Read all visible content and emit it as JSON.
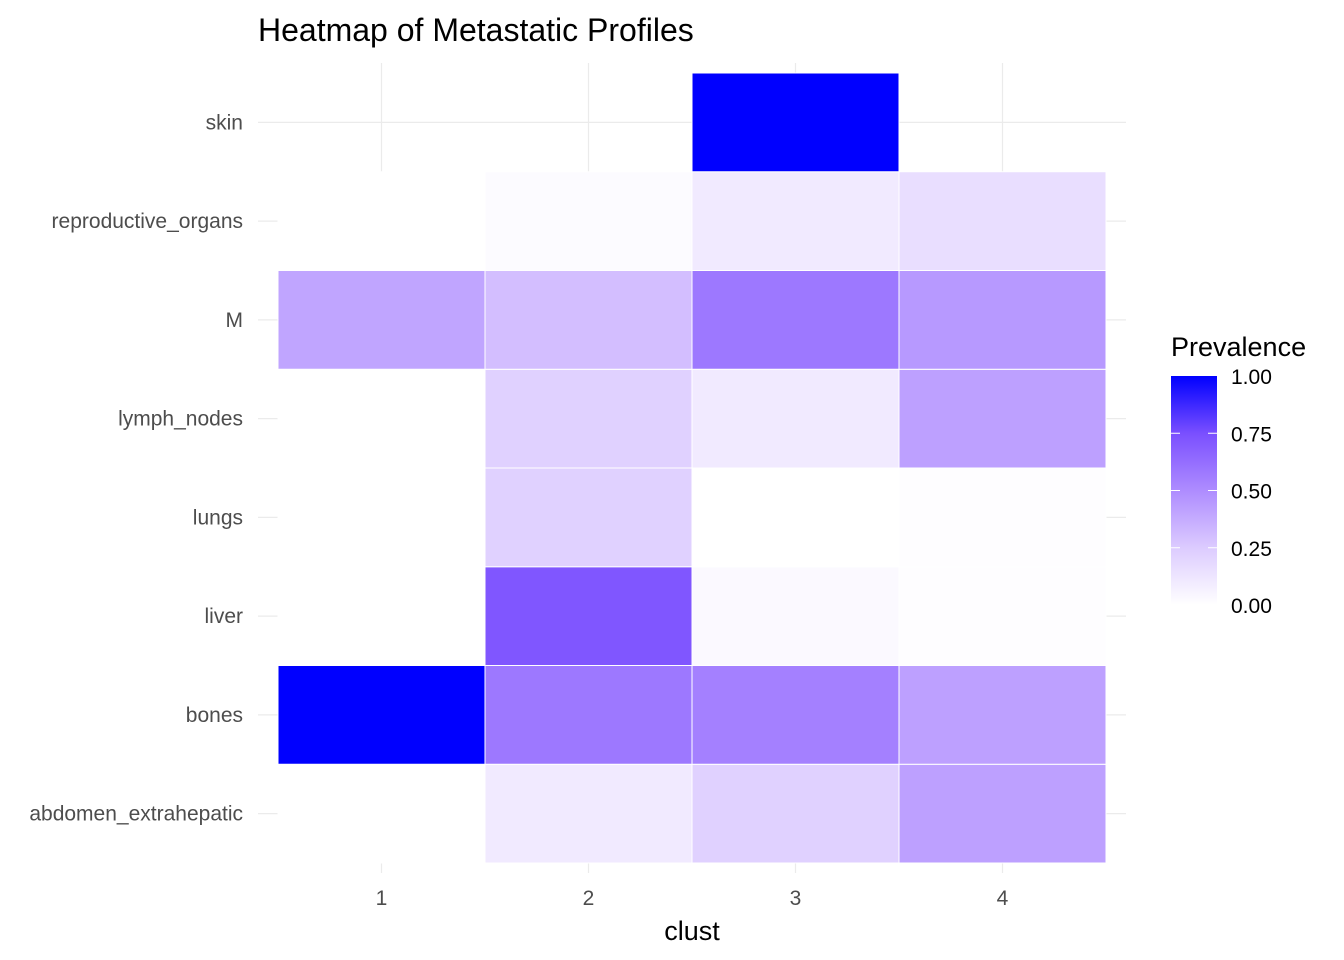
{
  "chart_data": {
    "type": "heatmap",
    "title": "Heatmap of Metastatic Profiles",
    "xlabel": "clust",
    "ylabel": "",
    "x_categories": [
      "1",
      "2",
      "3",
      "4"
    ],
    "y_categories": [
      "abdomen_extrahepatic",
      "bones",
      "liver",
      "lungs",
      "lymph_nodes",
      "M",
      "reproductive_organs",
      "skin"
    ],
    "values": {
      "skin": [
        null,
        null,
        1.0,
        null
      ],
      "reproductive_organs": [
        0.0,
        0.02,
        0.1,
        0.16
      ],
      "M": [
        0.4,
        0.3,
        0.58,
        0.45
      ],
      "lymph_nodes": [
        0.0,
        0.22,
        0.1,
        0.42
      ],
      "lungs": [
        0.0,
        0.22,
        0.0,
        0.01
      ],
      "liver": [
        0.0,
        0.72,
        0.03,
        0.01
      ],
      "bones": [
        1.0,
        0.58,
        0.55,
        0.42
      ],
      "abdomen_extrahepatic": [
        0.0,
        0.1,
        0.22,
        0.42
      ]
    },
    "legend": {
      "title": "Prevalence",
      "ticks": [
        "0.00",
        "0.25",
        "0.50",
        "0.75",
        "1.00"
      ],
      "range": [
        0,
        1
      ],
      "low_color": "#FFFFFF",
      "high_color": "#0000FF",
      "placement": "right"
    },
    "grid": true
  }
}
